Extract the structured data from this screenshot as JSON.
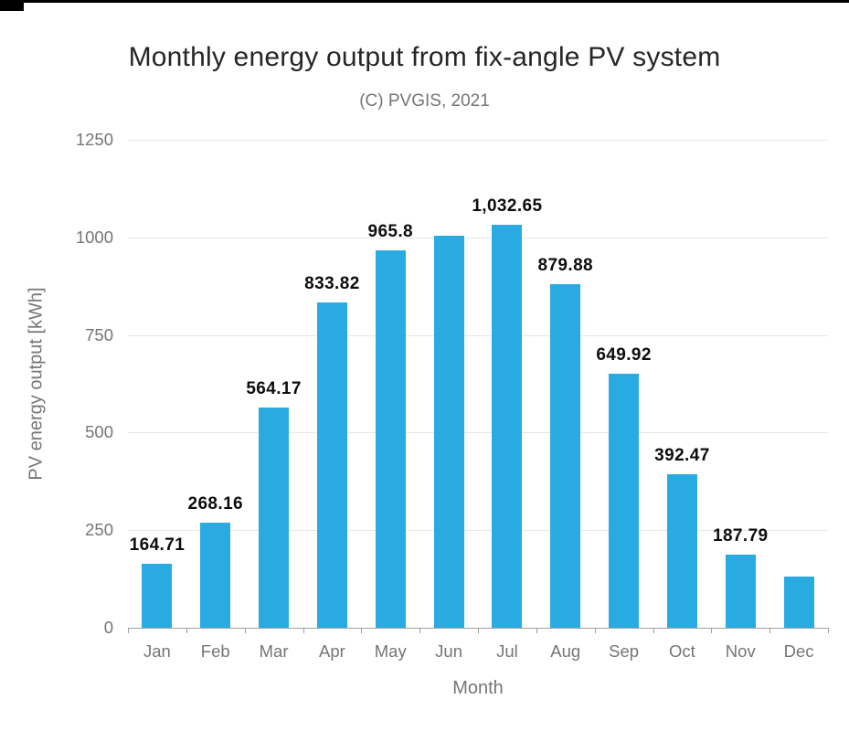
{
  "chart_data": {
    "type": "bar",
    "title": "Monthly energy output from fix-angle PV system",
    "subtitle": "(C) PVGIS, 2021",
    "xlabel": "Month",
    "ylabel": "PV energy output [kWh]",
    "ylim": [
      0,
      1250
    ],
    "yticks": [
      0,
      250,
      500,
      750,
      1000,
      1250
    ],
    "categories": [
      "Jan",
      "Feb",
      "Mar",
      "Apr",
      "May",
      "Jun",
      "Jul",
      "Aug",
      "Sep",
      "Oct",
      "Nov",
      "Dec"
    ],
    "values": [
      164.71,
      268.16,
      564.17,
      833.82,
      965.8,
      1005,
      1032.65,
      879.88,
      649.92,
      392.47,
      187.79,
      130
    ],
    "labels": [
      "164.71",
      "268.16",
      "564.17",
      "833.82",
      "965.8",
      "",
      "1,032.65",
      "879.88",
      "649.92",
      "392.47",
      "187.79",
      ""
    ],
    "bar_color": "#29ABE2",
    "grid": true,
    "legend": "none"
  }
}
